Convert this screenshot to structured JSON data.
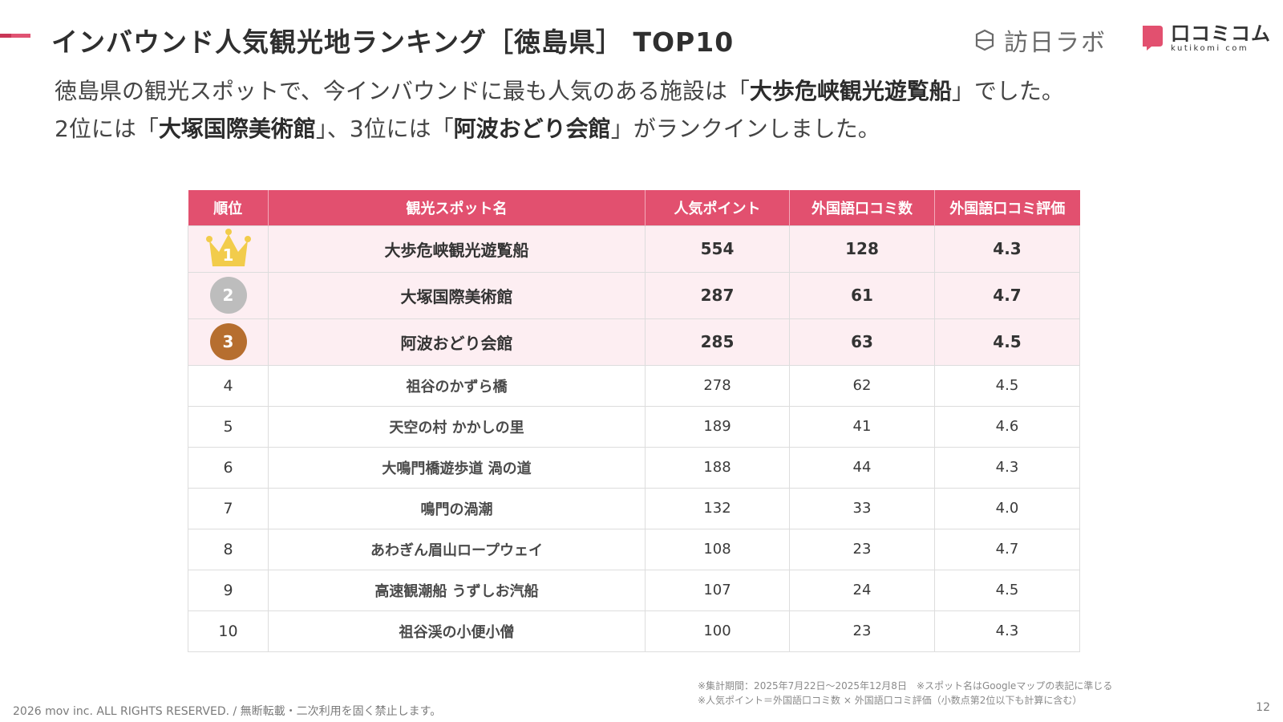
{
  "header": {
    "title": "インバウンド人気観光地ランキング［徳島県］ TOP10",
    "accent_color": "#e05372",
    "logo_houjitsu_text": "訪日ラボ",
    "logo_kuchikomi_text": "口コミコム",
    "logo_kuchikomi_sub": "kutikomi com"
  },
  "lead": {
    "line1_prefix": "徳島県の観光スポットで、今インバウンドに最も人気のある施設は「",
    "line1_bold": "大歩危峡観光遊覧船",
    "line1_suffix": "」でした。",
    "line2_a": "2位には「",
    "line2_bold1": "大塚国際美術館",
    "line2_b": "」、3位には「",
    "line2_bold2": "阿波おどり会館",
    "line2_c": "」がランクインしました。"
  },
  "table": {
    "header_color": "#e2506f",
    "headers": {
      "rank": "順位",
      "name": "観光スポット名",
      "points": "人気ポイント",
      "reviews": "外国語口コミ数",
      "rating": "外国語口コミ評価"
    },
    "rows": [
      {
        "rank": "1",
        "name": "大歩危峡観光遊覧船",
        "points": "554",
        "reviews": "128",
        "rating": "4.3"
      },
      {
        "rank": "2",
        "name": "大塚国際美術館",
        "points": "287",
        "reviews": "61",
        "rating": "4.7"
      },
      {
        "rank": "3",
        "name": "阿波おどり会館",
        "points": "285",
        "reviews": "63",
        "rating": "4.5"
      },
      {
        "rank": "4",
        "name": "祖谷のかずら橋",
        "points": "278",
        "reviews": "62",
        "rating": "4.5"
      },
      {
        "rank": "5",
        "name": "天空の村 かかしの里",
        "points": "189",
        "reviews": "41",
        "rating": "4.6"
      },
      {
        "rank": "6",
        "name": "大鳴門橋遊歩道 渦の道",
        "points": "188",
        "reviews": "44",
        "rating": "4.3"
      },
      {
        "rank": "7",
        "name": "鳴門の渦潮",
        "points": "132",
        "reviews": "33",
        "rating": "4.0"
      },
      {
        "rank": "8",
        "name": "あわぎん眉山ロープウェイ",
        "points": "108",
        "reviews": "23",
        "rating": "4.7"
      },
      {
        "rank": "9",
        "name": "高速観潮船 うずしお汽船",
        "points": "107",
        "reviews": "24",
        "rating": "4.5"
      },
      {
        "rank": "10",
        "name": "祖谷渓の小便小僧",
        "points": "100",
        "reviews": "23",
        "rating": "4.3"
      }
    ]
  },
  "notes": {
    "line1": "※集計期間：2025年7月22日〜2025年12月8日　※スポット名はGoogleマップの表記に準じる",
    "line2": "※人気ポイント＝外国語口コミ数 × 外国語口コミ評価（小数点第2位以下も計算に含む）"
  },
  "footer": {
    "copyright": "2026 mov inc. ALL RIGHTS RESERVED. / 無断転載・二次利用を固く禁止します。",
    "page_number": "12"
  }
}
